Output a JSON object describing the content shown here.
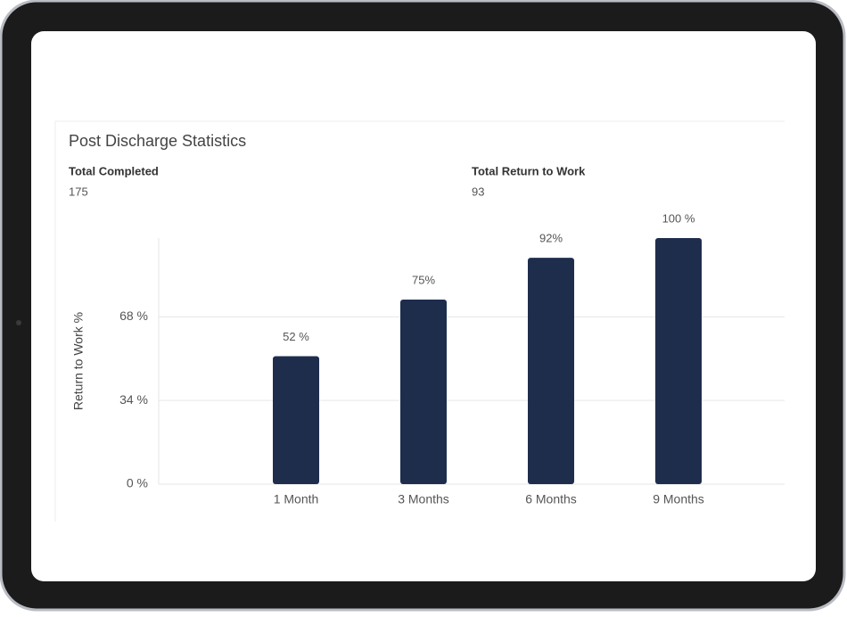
{
  "card": {
    "title": "Post Discharge Statistics",
    "stats": [
      {
        "label": "Total Completed",
        "value": 175
      },
      {
        "label": "Total Return to Work",
        "value": 93
      }
    ]
  },
  "chart_data": {
    "type": "bar",
    "y_label": "Return to Work %",
    "categories": [
      "1 Month",
      "3 Months",
      "6 Months",
      "9 Months"
    ],
    "values": [
      52,
      75,
      92,
      100
    ],
    "value_labels": [
      "52 %",
      "75%",
      "92%",
      "100 %"
    ],
    "color": "#1f2d4d",
    "ylim": [
      0,
      100
    ],
    "yticks": [
      {
        "value": 0,
        "label": "0 %"
      },
      {
        "value": 34,
        "label": "34 %"
      },
      {
        "value": 68,
        "label": "68 %"
      }
    ],
    "grid": true
  }
}
